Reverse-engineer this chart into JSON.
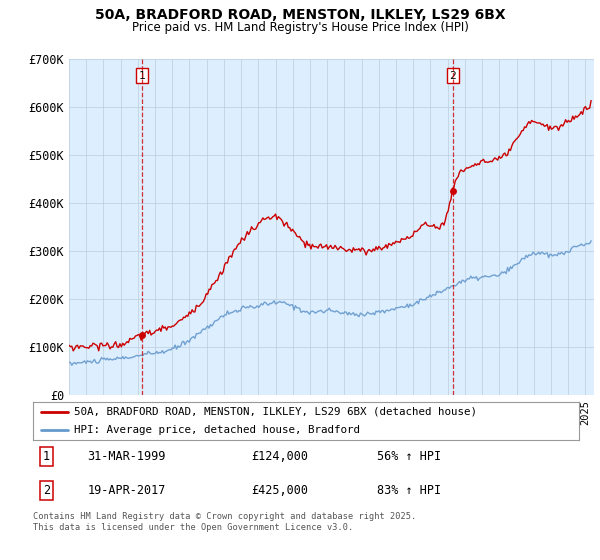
{
  "title": "50A, BRADFORD ROAD, MENSTON, ILKLEY, LS29 6BX",
  "subtitle": "Price paid vs. HM Land Registry's House Price Index (HPI)",
  "ylim": [
    0,
    700000
  ],
  "yticks": [
    0,
    100000,
    200000,
    300000,
    400000,
    500000,
    600000,
    700000
  ],
  "ytick_labels": [
    "£0",
    "£100K",
    "£200K",
    "£300K",
    "£400K",
    "£500K",
    "£600K",
    "£700K"
  ],
  "xlim_start": 1995.0,
  "xlim_end": 2025.5,
  "property_color": "#cc0000",
  "hpi_color": "#6699cc",
  "chart_bg_color": "#ddeeff",
  "point1_year": 1999.25,
  "point1_value": 124000,
  "point1_label": "1",
  "point2_year": 2017.29,
  "point2_value": 425000,
  "point2_label": "2",
  "legend_line1": "50A, BRADFORD ROAD, MENSTON, ILKLEY, LS29 6BX (detached house)",
  "legend_line2": "HPI: Average price, detached house, Bradford",
  "annotation1_date": "31-MAR-1999",
  "annotation1_price": "£124,000",
  "annotation1_hpi": "56% ↑ HPI",
  "annotation2_date": "19-APR-2017",
  "annotation2_price": "£425,000",
  "annotation2_hpi": "83% ↑ HPI",
  "footer": "Contains HM Land Registry data © Crown copyright and database right 2025.\nThis data is licensed under the Open Government Licence v3.0.",
  "background_color": "#ffffff",
  "grid_color": "#bbccdd"
}
